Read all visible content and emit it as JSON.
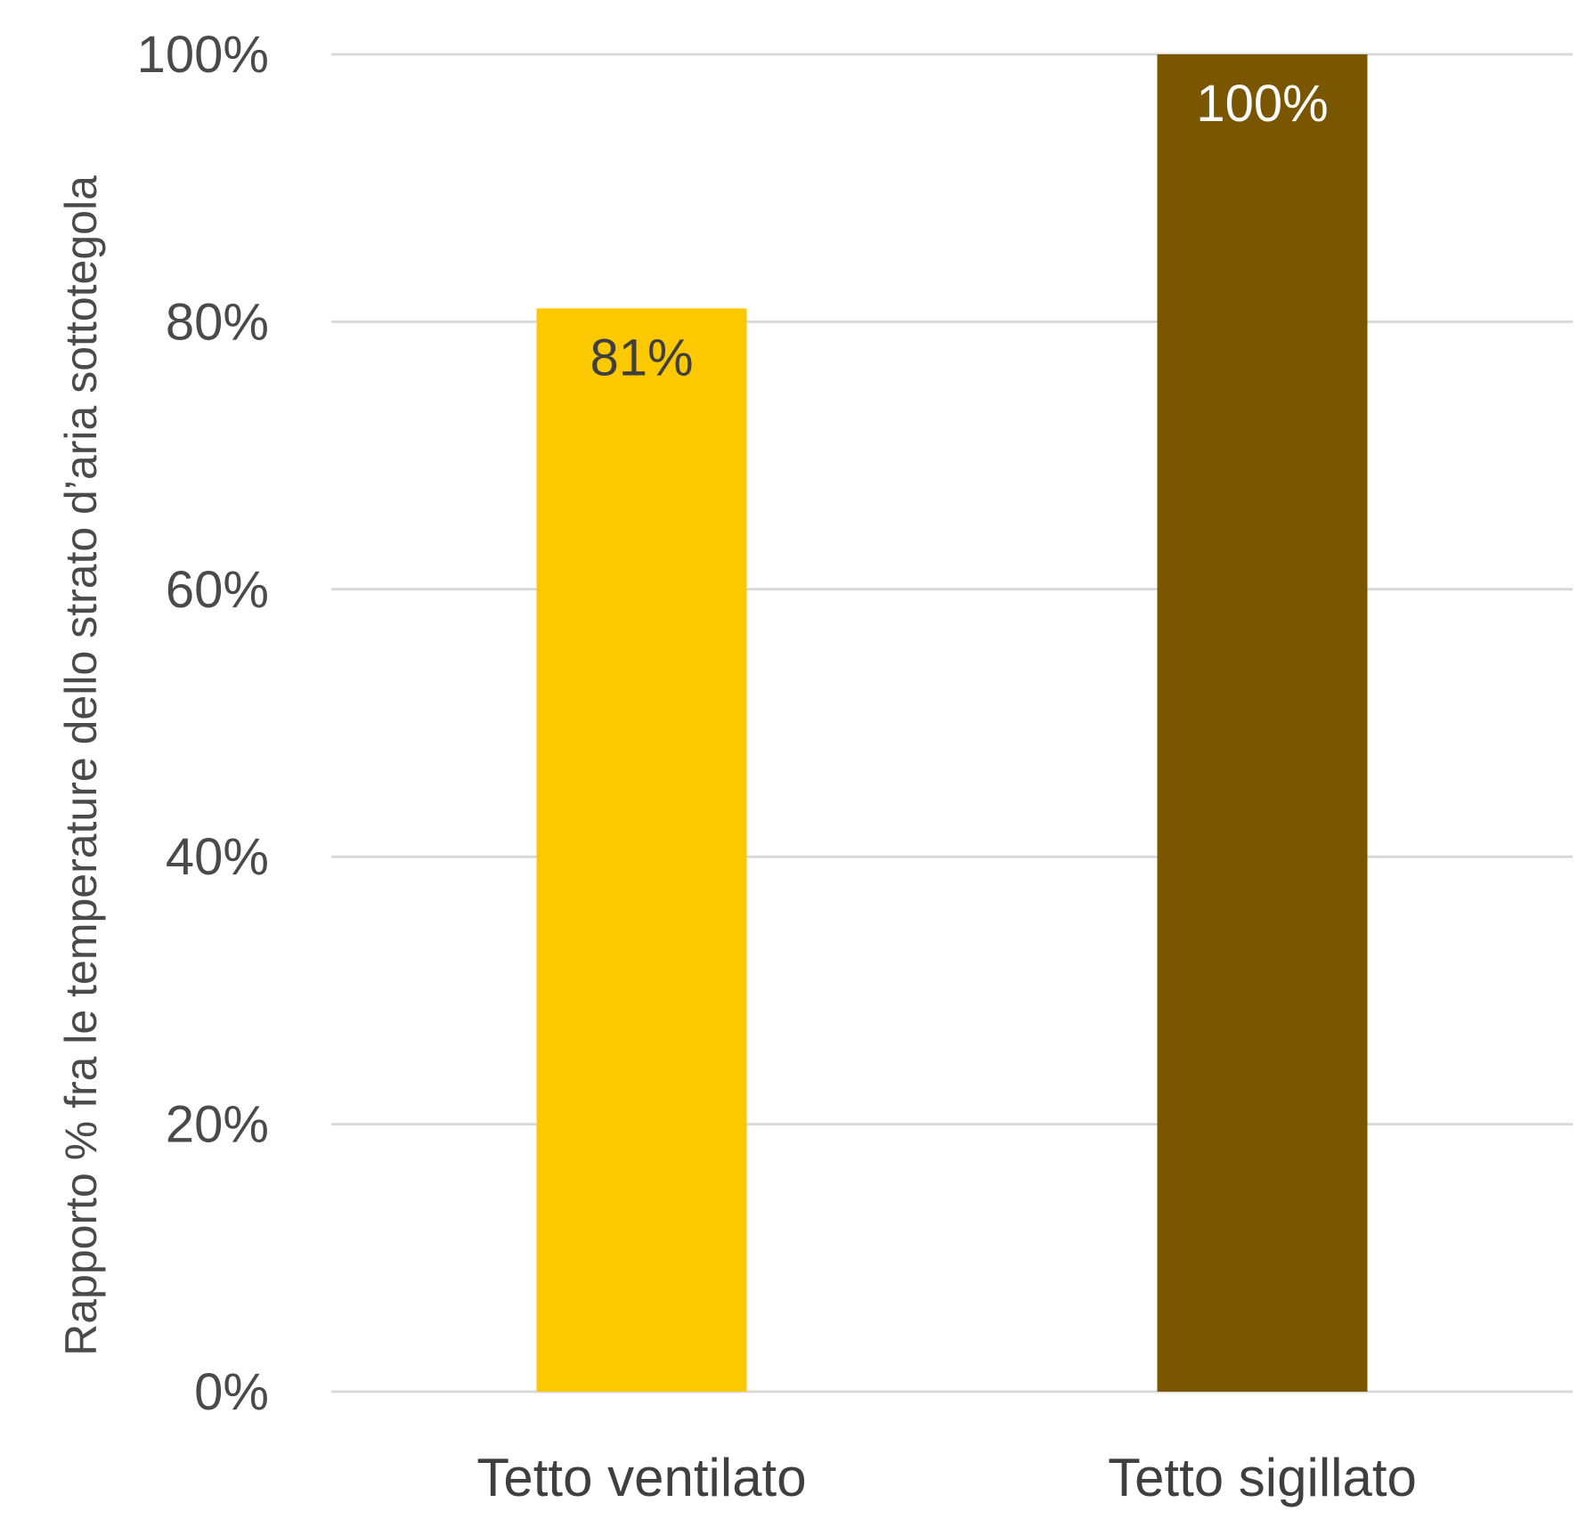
{
  "chart_data": {
    "type": "bar",
    "title": "",
    "xlabel": "",
    "ylabel": "Rapporto % fra le temperature dello strato d’aria sottotegola",
    "categories": [
      "Tetto ventilato",
      "Tetto sigillato"
    ],
    "values": [
      81,
      100
    ],
    "data_labels": [
      "81%",
      "100%"
    ],
    "bar_colors": [
      "#FCC900",
      "#7A5600"
    ],
    "data_label_colors": [
      "#3f3f3f",
      "#ffffff"
    ],
    "ylim": [
      0,
      100
    ],
    "yticks": [
      0,
      20,
      40,
      60,
      80,
      100
    ],
    "ytick_labels": [
      "0%",
      "20%",
      "40%",
      "60%",
      "80%",
      "100%"
    ],
    "grid": true,
    "legend": "none"
  }
}
